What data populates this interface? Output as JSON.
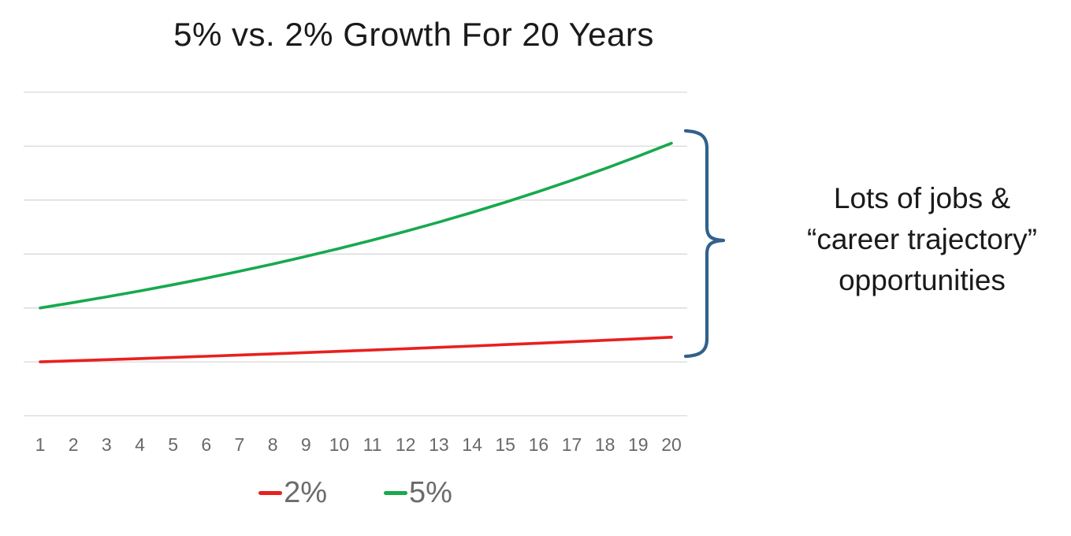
{
  "title": "5% vs. 2% Growth For 20 Years",
  "annotation": {
    "text": "Lots of jobs &\n“career trajectory”\nopportunities",
    "brace_color": "#31618C"
  },
  "colors": {
    "background": "#ffffff",
    "title_text": "#1a1a1a",
    "gridline": "#d9d9d9",
    "tick_label": "#696969",
    "legend_text": "#6b6b6b",
    "series_2pct": "#E8201E",
    "series_5pct": "#17A94E",
    "brace": "#31618C"
  },
  "legend": {
    "items": [
      {
        "label": "2%",
        "color": "#E8201E"
      },
      {
        "label": "5%",
        "color": "#17A94E"
      }
    ]
  },
  "chart_data": {
    "type": "line",
    "title": "5% vs. 2% Growth For 20 Years",
    "x": [
      1,
      2,
      3,
      4,
      5,
      6,
      7,
      8,
      9,
      10,
      11,
      12,
      13,
      14,
      15,
      16,
      17,
      18,
      19,
      20
    ],
    "series": [
      {
        "name": "2%",
        "color": "#E8201E",
        "values": [
          50,
          51,
          52.02,
          53.06,
          54.12,
          55.2,
          56.31,
          57.43,
          58.58,
          59.75,
          60.95,
          62.17,
          63.41,
          64.68,
          65.97,
          67.29,
          68.64,
          70.01,
          71.41,
          72.84
        ]
      },
      {
        "name": "5%",
        "color": "#17A94E",
        "values": [
          100,
          105,
          110.25,
          115.76,
          121.55,
          127.63,
          134.01,
          140.71,
          147.75,
          155.13,
          162.89,
          171.03,
          179.59,
          188.56,
          197.99,
          207.89,
          218.29,
          229.2,
          240.66,
          252.7
        ]
      }
    ],
    "xlabel": "",
    "ylabel": "",
    "ylim": [
      0,
      300
    ],
    "gridline_step": 50,
    "grid": "horizontal-only",
    "y_axis_labels_shown": false,
    "legend_position": "bottom",
    "annotation": "Lots of jobs & “career trajectory” opportunities (brace spans gap between 5% and 2% end points)"
  }
}
